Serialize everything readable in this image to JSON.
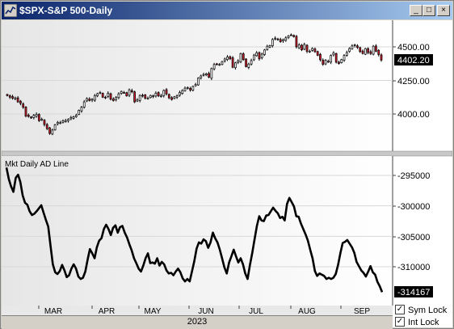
{
  "window": {
    "title": "$SPX-S&P 500-Daily",
    "buttons": {
      "minimize": "_",
      "maximize": "□",
      "close": "×"
    }
  },
  "price_panel": {
    "current_price_label": "4402.20",
    "y_ticks": [
      "4500.00",
      "4250.00",
      "4000.00"
    ]
  },
  "ad_panel": {
    "label": "Mkt Daily AD Line",
    "current_value_label": "-314167",
    "y_ticks": [
      "-295000",
      "-300000",
      "-305000",
      "-310000"
    ]
  },
  "x_axis": {
    "months": [
      "MAR",
      "APR",
      "MAY",
      "JUN",
      "JUL",
      "AUG",
      "SEP"
    ],
    "year": "2023"
  },
  "locks": {
    "sym_lock": "Sym Lock",
    "int_lock": "Int Lock",
    "sym_checked": true,
    "int_checked": true
  },
  "colors": {
    "up_candle": "#ffffff",
    "down_candle": "#cc1a2a",
    "line": "#000000",
    "price_label_bg": "#000000"
  },
  "chart_data": [
    {
      "type": "candlestick",
      "title": "$SPX-S&P 500-Daily",
      "y_ticks": [
        4500,
        4250,
        4000
      ],
      "close": [
        4137,
        4125,
        4118,
        4120,
        4090,
        4079,
        4050,
        3985,
        3981,
        3970,
        3990,
        3998,
        3950,
        3960,
        3921,
        3891,
        3855,
        3880,
        3920,
        3938,
        3935,
        3950,
        3951,
        3960,
        3974,
        3980,
        3991,
        4027,
        4050,
        4090,
        4115,
        4100,
        4110,
        4137,
        4151,
        4160,
        4125,
        4124,
        4155,
        4110,
        4100,
        4125,
        4150,
        4168,
        4160,
        4135,
        4180,
        4165,
        4090,
        4105,
        4138,
        4135,
        4118,
        4119,
        4138,
        4135,
        4155,
        4135,
        4137,
        4175,
        4150,
        4120,
        4108,
        4128,
        4136,
        4160,
        4175,
        4192,
        4197,
        4178,
        4205,
        4221,
        4268,
        4283,
        4294,
        4299,
        4274,
        4338,
        4369,
        4372,
        4369,
        4390,
        4410,
        4425,
        4411,
        4348,
        4381,
        4396,
        4450,
        4405,
        4353,
        4372,
        4398,
        4439,
        4456,
        4411,
        4446,
        4477,
        4505,
        4510,
        4555,
        4565,
        4555,
        4538,
        4554,
        4567,
        4582,
        4589,
        4576,
        4501,
        4514,
        4478,
        4518,
        4467,
        4468,
        4489,
        4464,
        4437,
        4404,
        4370,
        4400,
        4388,
        4436,
        4456,
        4386,
        4376,
        4405,
        4436,
        4458,
        4488,
        4507,
        4515,
        4496,
        4465,
        4451,
        4487,
        4458,
        4450,
        4505,
        4467,
        4443,
        4402
      ]
    },
    {
      "type": "line",
      "title": "Mkt Daily AD Line",
      "y_ticks": [
        -295000,
        -300000,
        -305000,
        -310000
      ],
      "values": [
        -293700,
        -295600,
        -296800,
        -297700,
        -295400,
        -294900,
        -296100,
        -298300,
        -299500,
        -299800,
        -300900,
        -301500,
        -301300,
        -300900,
        -300400,
        -299900,
        -301100,
        -302300,
        -303400,
        -306500,
        -309600,
        -310900,
        -311200,
        -310700,
        -309700,
        -310600,
        -311700,
        -311400,
        -310300,
        -309600,
        -310300,
        -311600,
        -312000,
        -311800,
        -310800,
        -308800,
        -307100,
        -307800,
        -308600,
        -306800,
        -305700,
        -305300,
        -303800,
        -303100,
        -303800,
        -304800,
        -303600,
        -303200,
        -304400,
        -303500,
        -303300,
        -304400,
        -305200,
        -306300,
        -307300,
        -308600,
        -309400,
        -310300,
        -310800,
        -309800,
        -308600,
        -307800,
        -309400,
        -309300,
        -309500,
        -308600,
        -309800,
        -309200,
        -309600,
        -310600,
        -311100,
        -311000,
        -311400,
        -310800,
        -310300,
        -310900,
        -311900,
        -312400,
        -312000,
        -312400,
        -310800,
        -309100,
        -307000,
        -306000,
        -306200,
        -305500,
        -305800,
        -306900,
        -306000,
        -304400,
        -305300,
        -306000,
        -307200,
        -308600,
        -310100,
        -311100,
        -309300,
        -308300,
        -307200,
        -308300,
        -309300,
        -308600,
        -309600,
        -311100,
        -312000,
        -309700,
        -307700,
        -305500,
        -303300,
        -301700,
        -302400,
        -302500,
        -301600,
        -301500,
        -300900,
        -300300,
        -300800,
        -301200,
        -302000,
        -301800,
        -302400,
        -299700,
        -298700,
        -299400,
        -300100,
        -301700,
        -301800,
        -302900,
        -303800,
        -304700,
        -305700,
        -307200,
        -308600,
        -310700,
        -311500,
        -311100,
        -311300,
        -311500,
        -312000,
        -311800,
        -312000,
        -311800,
        -311200,
        -309700,
        -307800,
        -306100,
        -305900,
        -305600,
        -306200,
        -306800,
        -307700,
        -309200,
        -309900,
        -310600,
        -311000,
        -311600,
        -310800,
        -309900,
        -310900,
        -311300,
        -312500,
        -313200,
        -314167
      ]
    }
  ]
}
